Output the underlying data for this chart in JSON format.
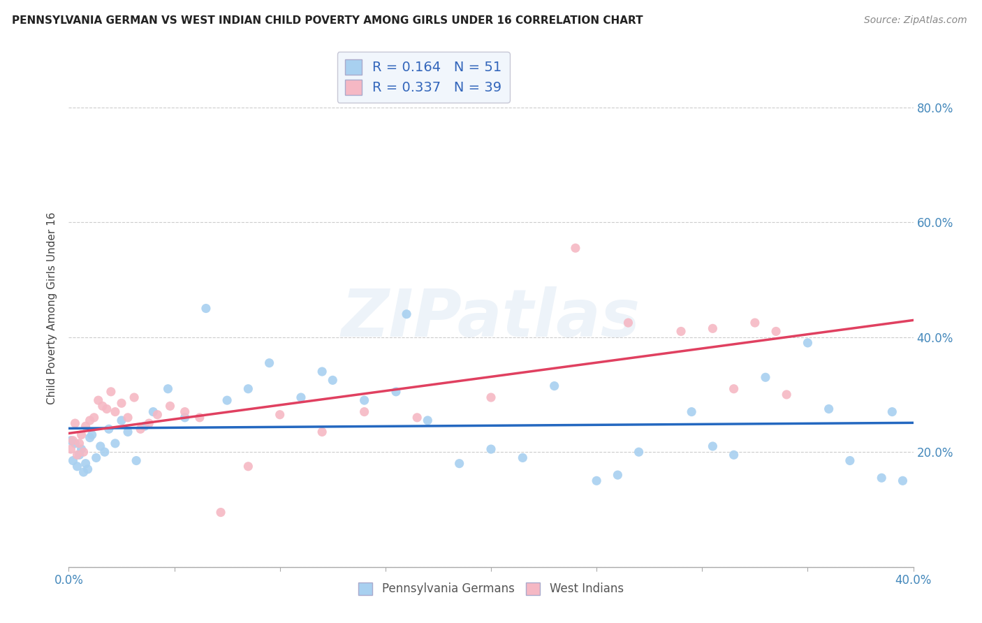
{
  "title": "PENNSYLVANIA GERMAN VS WEST INDIAN CHILD POVERTY AMONG GIRLS UNDER 16 CORRELATION CHART",
  "source": "Source: ZipAtlas.com",
  "ylabel": "Child Poverty Among Girls Under 16",
  "r_pennsylvania": 0.164,
  "n_pennsylvania": 51,
  "r_westindian": 0.337,
  "n_westindian": 39,
  "xlim": [
    0.0,
    0.4
  ],
  "ylim": [
    0.0,
    0.9
  ],
  "yticks": [
    0.0,
    0.2,
    0.4,
    0.6,
    0.8
  ],
  "xticks": [
    0.0,
    0.05,
    0.1,
    0.15,
    0.2,
    0.25,
    0.3,
    0.35,
    0.4
  ],
  "xtick_labels": [
    "0.0%",
    "",
    "",
    "",
    "",
    "",
    "",
    "",
    "40.0%"
  ],
  "ytick_labels": [
    "",
    "20.0%",
    "40.0%",
    "60.0%",
    "80.0%"
  ],
  "color_pennsylvania": "#A8D0F0",
  "color_westindian": "#F5B8C4",
  "line_color_pennsylvania": "#2468C0",
  "line_color_westindian": "#E04060",
  "background_color": "#FFFFFF",
  "grid_color": "#CCCCCC",
  "legend_facecolor": "#EEF4FC",
  "legend_edgecolor": "#BBBBCC",
  "watermark": "ZIPatlas",
  "pa_german_x": [
    0.001,
    0.002,
    0.003,
    0.004,
    0.005,
    0.006,
    0.007,
    0.008,
    0.009,
    0.01,
    0.011,
    0.013,
    0.015,
    0.017,
    0.019,
    0.022,
    0.025,
    0.028,
    0.032,
    0.036,
    0.04,
    0.047,
    0.055,
    0.065,
    0.075,
    0.085,
    0.095,
    0.11,
    0.125,
    0.14,
    0.155,
    0.17,
    0.185,
    0.2,
    0.215,
    0.23,
    0.25,
    0.27,
    0.295,
    0.315,
    0.33,
    0.35,
    0.36,
    0.37,
    0.385,
    0.39,
    0.395,
    0.12,
    0.16,
    0.26,
    0.305
  ],
  "pa_german_y": [
    0.22,
    0.185,
    0.215,
    0.175,
    0.195,
    0.205,
    0.165,
    0.18,
    0.17,
    0.225,
    0.23,
    0.19,
    0.21,
    0.2,
    0.24,
    0.215,
    0.255,
    0.235,
    0.185,
    0.245,
    0.27,
    0.31,
    0.26,
    0.45,
    0.29,
    0.31,
    0.355,
    0.295,
    0.325,
    0.29,
    0.305,
    0.255,
    0.18,
    0.205,
    0.19,
    0.315,
    0.15,
    0.2,
    0.27,
    0.195,
    0.33,
    0.39,
    0.275,
    0.185,
    0.155,
    0.27,
    0.15,
    0.34,
    0.44,
    0.16,
    0.21
  ],
  "wi_x": [
    0.001,
    0.002,
    0.003,
    0.004,
    0.005,
    0.006,
    0.007,
    0.008,
    0.01,
    0.012,
    0.014,
    0.016,
    0.018,
    0.02,
    0.022,
    0.025,
    0.028,
    0.031,
    0.034,
    0.038,
    0.042,
    0.048,
    0.055,
    0.062,
    0.072,
    0.085,
    0.1,
    0.12,
    0.14,
    0.165,
    0.2,
    0.24,
    0.265,
    0.29,
    0.305,
    0.315,
    0.325,
    0.335,
    0.34
  ],
  "wi_y": [
    0.205,
    0.22,
    0.25,
    0.195,
    0.215,
    0.23,
    0.2,
    0.245,
    0.255,
    0.26,
    0.29,
    0.28,
    0.275,
    0.305,
    0.27,
    0.285,
    0.26,
    0.295,
    0.24,
    0.25,
    0.265,
    0.28,
    0.27,
    0.26,
    0.095,
    0.175,
    0.265,
    0.235,
    0.27,
    0.26,
    0.295,
    0.555,
    0.425,
    0.41,
    0.415,
    0.31,
    0.425,
    0.41,
    0.3
  ]
}
